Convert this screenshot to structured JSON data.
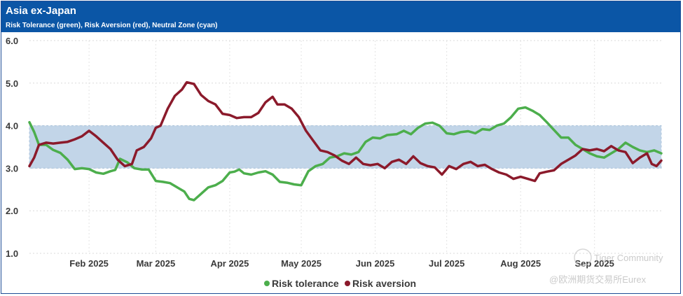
{
  "header": {
    "title": "Asia ex-Japan",
    "subtitle": "Risk Tolerance (green), Risk Aversion (red), Neutral Zone (cyan)"
  },
  "watermark": {
    "community": "Tiger Community",
    "source": "@欧洲期货交易所Eurex"
  },
  "colors": {
    "header_bg": "#0b56a6",
    "band": "#c2d5e8",
    "tolerance": "#4cae4c",
    "aversion": "#8b1a2b"
  },
  "chart_data": {
    "type": "line",
    "title": "Asia ex-Japan",
    "subtitle": "Risk Tolerance (green), Risk Aversion (red), Neutral Zone (cyan)",
    "ylim": [
      1.0,
      6.0
    ],
    "yticks": [
      "6.0",
      "5.0",
      "4.0",
      "3.0",
      "2.0",
      "1.0"
    ],
    "xlim": [
      "2025-01-07",
      "2025-09-29"
    ],
    "xticks": [
      {
        "label": "Feb 2025",
        "date": "2025-02-01"
      },
      {
        "label": "Mar 2025",
        "date": "2025-03-01"
      },
      {
        "label": "Apr 2025",
        "date": "2025-04-01"
      },
      {
        "label": "May 2025",
        "date": "2025-05-01"
      },
      {
        "label": "Jun 2025",
        "date": "2025-06-01"
      },
      {
        "label": "Jul 2025",
        "date": "2025-07-01"
      },
      {
        "label": "Aug 2025",
        "date": "2025-08-01"
      },
      {
        "label": "Sep 2025",
        "date": "2025-09-01"
      }
    ],
    "neutral_zone": [
      3.0,
      4.0
    ],
    "grid": true,
    "legend_position": "bottom-center",
    "series": [
      {
        "name": "Risk tolerance",
        "color": "#4cae4c",
        "points": [
          [
            "2025-01-07",
            4.08
          ],
          [
            "2025-01-09",
            3.85
          ],
          [
            "2025-01-11",
            3.55
          ],
          [
            "2025-01-14",
            3.55
          ],
          [
            "2025-01-17",
            3.43
          ],
          [
            "2025-01-20",
            3.36
          ],
          [
            "2025-01-23",
            3.2
          ],
          [
            "2025-01-26",
            2.98
          ],
          [
            "2025-01-29",
            3.0
          ],
          [
            "2025-02-01",
            2.98
          ],
          [
            "2025-02-04",
            2.9
          ],
          [
            "2025-02-07",
            2.87
          ],
          [
            "2025-02-10",
            2.93
          ],
          [
            "2025-02-12",
            2.96
          ],
          [
            "2025-02-14",
            3.22
          ],
          [
            "2025-02-17",
            3.14
          ],
          [
            "2025-02-20",
            3.0
          ],
          [
            "2025-02-23",
            2.97
          ],
          [
            "2025-02-26",
            2.97
          ],
          [
            "2025-03-01",
            2.7
          ],
          [
            "2025-03-04",
            2.68
          ],
          [
            "2025-03-07",
            2.65
          ],
          [
            "2025-03-10",
            2.55
          ],
          [
            "2025-03-13",
            2.45
          ],
          [
            "2025-03-15",
            2.28
          ],
          [
            "2025-03-17",
            2.25
          ],
          [
            "2025-03-20",
            2.4
          ],
          [
            "2025-03-23",
            2.55
          ],
          [
            "2025-03-26",
            2.6
          ],
          [
            "2025-03-29",
            2.7
          ],
          [
            "2025-04-01",
            2.9
          ],
          [
            "2025-04-03",
            2.92
          ],
          [
            "2025-04-05",
            2.97
          ],
          [
            "2025-04-07",
            2.88
          ],
          [
            "2025-04-10",
            2.85
          ],
          [
            "2025-04-13",
            2.9
          ],
          [
            "2025-04-16",
            2.93
          ],
          [
            "2025-04-19",
            2.85
          ],
          [
            "2025-04-22",
            2.68
          ],
          [
            "2025-04-25",
            2.66
          ],
          [
            "2025-04-28",
            2.62
          ],
          [
            "2025-05-01",
            2.6
          ],
          [
            "2025-05-04",
            2.93
          ],
          [
            "2025-05-07",
            3.05
          ],
          [
            "2025-05-10",
            3.1
          ],
          [
            "2025-05-13",
            3.25
          ],
          [
            "2025-05-16",
            3.28
          ],
          [
            "2025-05-19",
            3.35
          ],
          [
            "2025-05-22",
            3.32
          ],
          [
            "2025-05-25",
            3.38
          ],
          [
            "2025-05-28",
            3.62
          ],
          [
            "2025-05-31",
            3.72
          ],
          [
            "2025-06-03",
            3.7
          ],
          [
            "2025-06-06",
            3.78
          ],
          [
            "2025-06-10",
            3.8
          ],
          [
            "2025-06-13",
            3.88
          ],
          [
            "2025-06-16",
            3.8
          ],
          [
            "2025-06-19",
            3.95
          ],
          [
            "2025-06-22",
            4.05
          ],
          [
            "2025-06-25",
            4.07
          ],
          [
            "2025-06-28",
            4.0
          ],
          [
            "2025-07-01",
            3.82
          ],
          [
            "2025-07-04",
            3.8
          ],
          [
            "2025-07-07",
            3.85
          ],
          [
            "2025-07-10",
            3.87
          ],
          [
            "2025-07-13",
            3.82
          ],
          [
            "2025-07-16",
            3.92
          ],
          [
            "2025-07-19",
            3.9
          ],
          [
            "2025-07-22",
            4.0
          ],
          [
            "2025-07-25",
            4.05
          ],
          [
            "2025-07-28",
            4.2
          ],
          [
            "2025-07-31",
            4.4
          ],
          [
            "2025-08-03",
            4.43
          ],
          [
            "2025-08-06",
            4.35
          ],
          [
            "2025-08-09",
            4.25
          ],
          [
            "2025-08-12",
            4.08
          ],
          [
            "2025-08-15",
            3.9
          ],
          [
            "2025-08-18",
            3.72
          ],
          [
            "2025-08-21",
            3.72
          ],
          [
            "2025-08-24",
            3.55
          ],
          [
            "2025-08-27",
            3.45
          ],
          [
            "2025-08-30",
            3.35
          ],
          [
            "2025-09-02",
            3.28
          ],
          [
            "2025-09-05",
            3.25
          ],
          [
            "2025-09-08",
            3.35
          ],
          [
            "2025-09-11",
            3.45
          ],
          [
            "2025-09-14",
            3.6
          ],
          [
            "2025-09-17",
            3.5
          ],
          [
            "2025-09-20",
            3.42
          ],
          [
            "2025-09-23",
            3.38
          ],
          [
            "2025-09-26",
            3.42
          ],
          [
            "2025-09-29",
            3.35
          ]
        ]
      },
      {
        "name": "Risk aversion",
        "color": "#8b1a2b",
        "points": [
          [
            "2025-01-07",
            3.05
          ],
          [
            "2025-01-09",
            3.25
          ],
          [
            "2025-01-11",
            3.55
          ],
          [
            "2025-01-14",
            3.6
          ],
          [
            "2025-01-17",
            3.58
          ],
          [
            "2025-01-20",
            3.6
          ],
          [
            "2025-01-23",
            3.62
          ],
          [
            "2025-01-26",
            3.68
          ],
          [
            "2025-01-29",
            3.75
          ],
          [
            "2025-02-01",
            3.88
          ],
          [
            "2025-02-04",
            3.75
          ],
          [
            "2025-02-07",
            3.6
          ],
          [
            "2025-02-10",
            3.45
          ],
          [
            "2025-02-13",
            3.2
          ],
          [
            "2025-02-16",
            3.05
          ],
          [
            "2025-02-19",
            3.1
          ],
          [
            "2025-02-21",
            3.42
          ],
          [
            "2025-02-24",
            3.5
          ],
          [
            "2025-02-27",
            3.7
          ],
          [
            "2025-03-01",
            3.95
          ],
          [
            "2025-03-03",
            4.0
          ],
          [
            "2025-03-06",
            4.4
          ],
          [
            "2025-03-09",
            4.7
          ],
          [
            "2025-03-12",
            4.85
          ],
          [
            "2025-03-14",
            5.02
          ],
          [
            "2025-03-17",
            4.98
          ],
          [
            "2025-03-20",
            4.72
          ],
          [
            "2025-03-23",
            4.58
          ],
          [
            "2025-03-26",
            4.5
          ],
          [
            "2025-03-29",
            4.28
          ],
          [
            "2025-04-01",
            4.25
          ],
          [
            "2025-04-04",
            4.18
          ],
          [
            "2025-04-07",
            4.2
          ],
          [
            "2025-04-10",
            4.2
          ],
          [
            "2025-04-13",
            4.3
          ],
          [
            "2025-04-16",
            4.55
          ],
          [
            "2025-04-19",
            4.68
          ],
          [
            "2025-04-21",
            4.5
          ],
          [
            "2025-04-24",
            4.5
          ],
          [
            "2025-04-27",
            4.4
          ],
          [
            "2025-04-30",
            4.2
          ],
          [
            "2025-05-03",
            3.88
          ],
          [
            "2025-05-06",
            3.65
          ],
          [
            "2025-05-09",
            3.42
          ],
          [
            "2025-05-12",
            3.38
          ],
          [
            "2025-05-15",
            3.3
          ],
          [
            "2025-05-18",
            3.18
          ],
          [
            "2025-05-21",
            3.1
          ],
          [
            "2025-05-24",
            3.25
          ],
          [
            "2025-05-27",
            3.1
          ],
          [
            "2025-05-30",
            3.07
          ],
          [
            "2025-06-02",
            3.1
          ],
          [
            "2025-06-05",
            3.0
          ],
          [
            "2025-06-08",
            3.15
          ],
          [
            "2025-06-11",
            3.2
          ],
          [
            "2025-06-14",
            3.1
          ],
          [
            "2025-06-17",
            3.28
          ],
          [
            "2025-06-20",
            3.12
          ],
          [
            "2025-06-23",
            3.05
          ],
          [
            "2025-06-26",
            3.02
          ],
          [
            "2025-06-29",
            2.85
          ],
          [
            "2025-07-02",
            3.05
          ],
          [
            "2025-07-05",
            2.98
          ],
          [
            "2025-07-08",
            3.1
          ],
          [
            "2025-07-11",
            3.15
          ],
          [
            "2025-07-14",
            3.05
          ],
          [
            "2025-07-17",
            3.08
          ],
          [
            "2025-07-20",
            2.98
          ],
          [
            "2025-07-23",
            2.9
          ],
          [
            "2025-07-26",
            2.85
          ],
          [
            "2025-07-29",
            2.75
          ],
          [
            "2025-08-01",
            2.8
          ],
          [
            "2025-08-04",
            2.75
          ],
          [
            "2025-08-07",
            2.7
          ],
          [
            "2025-08-09",
            2.88
          ],
          [
            "2025-08-12",
            2.92
          ],
          [
            "2025-08-15",
            2.95
          ],
          [
            "2025-08-18",
            3.1
          ],
          [
            "2025-08-21",
            3.2
          ],
          [
            "2025-08-24",
            3.3
          ],
          [
            "2025-08-27",
            3.45
          ],
          [
            "2025-08-30",
            3.42
          ],
          [
            "2025-09-02",
            3.45
          ],
          [
            "2025-09-05",
            3.4
          ],
          [
            "2025-09-08",
            3.52
          ],
          [
            "2025-09-11",
            3.42
          ],
          [
            "2025-09-14",
            3.38
          ],
          [
            "2025-09-17",
            3.12
          ],
          [
            "2025-09-20",
            3.25
          ],
          [
            "2025-09-23",
            3.35
          ],
          [
            "2025-09-25",
            3.1
          ],
          [
            "2025-09-27",
            3.05
          ],
          [
            "2025-09-29",
            3.18
          ]
        ]
      }
    ]
  }
}
